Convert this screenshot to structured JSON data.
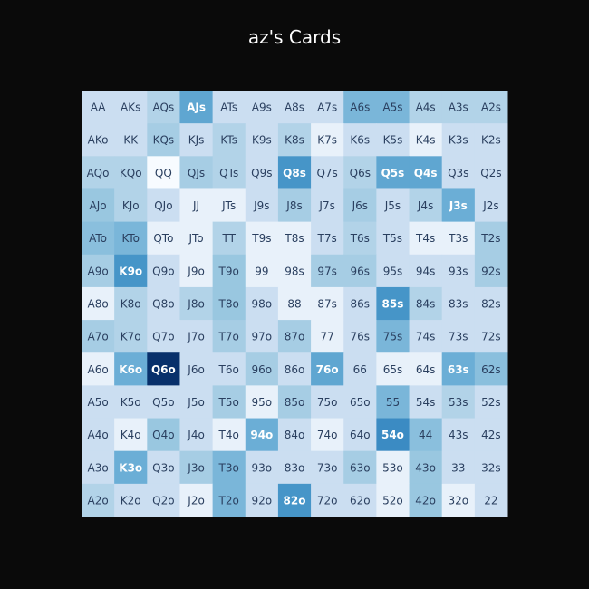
{
  "title": "az's Cards",
  "chart_data": {
    "type": "heatmap",
    "title": "az's Cards",
    "colorscale": [
      "#f7fbff",
      "#c6dbef",
      "#9ecae1",
      "#6baed6",
      "#4292c6",
      "#2171b5",
      "#08306b"
    ],
    "rows": [
      [
        "AA",
        "AKs",
        "AQs",
        "AJs",
        "ATs",
        "A9s",
        "A8s",
        "A7s",
        "A6s",
        "A5s",
        "A4s",
        "A3s",
        "A2s"
      ],
      [
        "AKo",
        "KK",
        "KQs",
        "KJs",
        "KTs",
        "K9s",
        "K8s",
        "K7s",
        "K6s",
        "K5s",
        "K4s",
        "K3s",
        "K2s"
      ],
      [
        "AQo",
        "KQo",
        "QQ",
        "QJs",
        "QTs",
        "Q9s",
        "Q8s",
        "Q7s",
        "Q6s",
        "Q5s",
        "Q4s",
        "Q3s",
        "Q2s"
      ],
      [
        "AJo",
        "KJo",
        "QJo",
        "JJ",
        "JTs",
        "J9s",
        "J8s",
        "J7s",
        "J6s",
        "J5s",
        "J4s",
        "J3s",
        "J2s"
      ],
      [
        "ATo",
        "KTo",
        "QTo",
        "JTo",
        "TT",
        "T9s",
        "T8s",
        "T7s",
        "T6s",
        "T5s",
        "T4s",
        "T3s",
        "T2s"
      ],
      [
        "A9o",
        "K9o",
        "Q9o",
        "J9o",
        "T9o",
        "99",
        "98s",
        "97s",
        "96s",
        "95s",
        "94s",
        "93s",
        "92s"
      ],
      [
        "A8o",
        "K8o",
        "Q8o",
        "J8o",
        "T8o",
        "98o",
        "88",
        "87s",
        "86s",
        "85s",
        "84s",
        "83s",
        "82s"
      ],
      [
        "A7o",
        "K7o",
        "Q7o",
        "J7o",
        "T7o",
        "97o",
        "87o",
        "77",
        "76s",
        "75s",
        "74s",
        "73s",
        "72s"
      ],
      [
        "A6o",
        "K6o",
        "Q6o",
        "J6o",
        "T6o",
        "96o",
        "86o",
        "76o",
        "66",
        "65s",
        "64s",
        "63s",
        "62s"
      ],
      [
        "A5o",
        "K5o",
        "Q5o",
        "J5o",
        "T5o",
        "95o",
        "85o",
        "75o",
        "65o",
        "55",
        "54s",
        "53s",
        "52s"
      ],
      [
        "A4o",
        "K4o",
        "Q4o",
        "J4o",
        "T4o",
        "94o",
        "84o",
        "74o",
        "64o",
        "54o",
        "44",
        "43s",
        "42s"
      ],
      [
        "A3o",
        "K3o",
        "Q3o",
        "J3o",
        "T3o",
        "93o",
        "83o",
        "73o",
        "63o",
        "53o",
        "43o",
        "33",
        "32s"
      ],
      [
        "A2o",
        "K2o",
        "Q2o",
        "J2o",
        "T2o",
        "92o",
        "82o",
        "72o",
        "62o",
        "52o",
        "42o",
        "32o",
        "22"
      ]
    ],
    "values": [
      [
        0.15,
        0.15,
        0.25,
        0.55,
        0.15,
        0.15,
        0.15,
        0.15,
        0.45,
        0.45,
        0.25,
        0.25,
        0.25
      ],
      [
        0.15,
        0.15,
        0.3,
        0.15,
        0.25,
        0.15,
        0.25,
        0.05,
        0.15,
        0.15,
        0.05,
        0.15,
        0.15
      ],
      [
        0.25,
        0.25,
        0.0,
        0.3,
        0.25,
        0.15,
        0.65,
        0.15,
        0.25,
        0.55,
        0.55,
        0.15,
        0.15
      ],
      [
        0.35,
        0.25,
        0.15,
        0.05,
        0.05,
        0.15,
        0.3,
        0.15,
        0.3,
        0.15,
        0.25,
        0.5,
        0.15
      ],
      [
        0.4,
        0.45,
        0.05,
        0.05,
        0.25,
        0.05,
        0.05,
        0.15,
        0.25,
        0.15,
        0.05,
        0.05,
        0.3
      ],
      [
        0.3,
        0.65,
        0.15,
        0.05,
        0.35,
        0.05,
        0.05,
        0.3,
        0.3,
        0.15,
        0.15,
        0.15,
        0.3
      ],
      [
        0.05,
        0.25,
        0.15,
        0.25,
        0.35,
        0.15,
        0.05,
        0.05,
        0.15,
        0.65,
        0.25,
        0.15,
        0.15
      ],
      [
        0.3,
        0.25,
        0.15,
        0.15,
        0.3,
        0.15,
        0.3,
        0.05,
        0.15,
        0.45,
        0.15,
        0.15,
        0.15
      ],
      [
        0.05,
        0.5,
        1.0,
        0.15,
        0.15,
        0.3,
        0.15,
        0.55,
        0.15,
        0.05,
        0.05,
        0.5,
        0.4
      ],
      [
        0.15,
        0.15,
        0.15,
        0.15,
        0.3,
        0.05,
        0.3,
        0.15,
        0.15,
        0.45,
        0.15,
        0.25,
        0.15
      ],
      [
        0.15,
        0.05,
        0.35,
        0.15,
        0.05,
        0.5,
        0.15,
        0.05,
        0.15,
        0.7,
        0.4,
        0.15,
        0.15
      ],
      [
        0.15,
        0.5,
        0.15,
        0.3,
        0.45,
        0.15,
        0.15,
        0.15,
        0.3,
        0.05,
        0.35,
        0.15,
        0.15
      ],
      [
        0.25,
        0.15,
        0.15,
        0.05,
        0.45,
        0.15,
        0.65,
        0.15,
        0.15,
        0.05,
        0.35,
        0.05,
        0.15
      ]
    ]
  }
}
